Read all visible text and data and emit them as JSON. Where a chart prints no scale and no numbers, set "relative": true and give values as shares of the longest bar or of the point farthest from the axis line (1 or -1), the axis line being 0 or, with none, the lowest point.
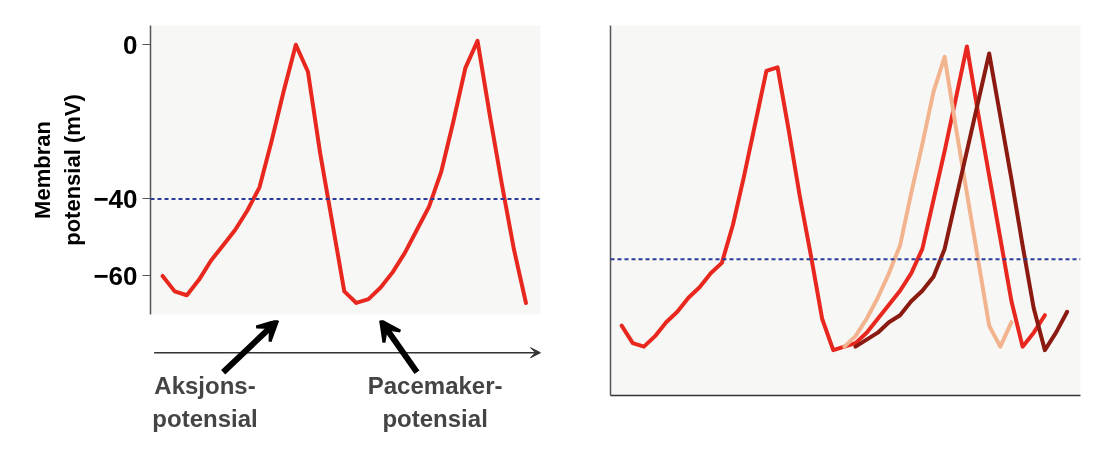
{
  "chart_data": [
    {
      "type": "line",
      "ylabel": "Membran\npotensial (mV)",
      "categories": [
        null,
        null,
        null,
        null,
        null,
        null,
        null,
        null,
        null,
        null,
        null,
        null,
        null,
        null,
        null,
        null,
        null,
        null,
        null,
        null,
        null,
        null,
        null,
        null,
        null,
        null,
        null,
        null,
        null,
        null,
        null
      ],
      "series": [
        {
          "color": "#e8281e",
          "values": [
            -60,
            -64,
            -65,
            -61,
            -56,
            -52,
            -48,
            -43,
            -37,
            -25,
            -12,
            0,
            -7,
            -28,
            -46,
            -64,
            -67,
            -66,
            -63,
            -59,
            -54,
            -48,
            -42,
            -33,
            -20,
            -6,
            1,
            -18,
            -36,
            -53,
            -67
          ]
        }
      ],
      "ylim": [
        -70,
        5
      ],
      "yticks": [
        0,
        -40,
        -60
      ],
      "tick_labels": "y",
      "grid": false,
      "marker": "none",
      "line_style": "solid",
      "ref_lines": [
        {
          "axis": "y",
          "value": -40,
          "color": "#2a3a9a",
          "line_style": "dotted"
        }
      ],
      "annotations": [
        "Aksjons-\npotensial",
        "Pacemaker-\npotensial"
      ]
    },
    {
      "type": "line",
      "relative": true,
      "categories": [
        null,
        null,
        null,
        null,
        null,
        null,
        null,
        null,
        null,
        null,
        null,
        null,
        null,
        null,
        null,
        null,
        null,
        null,
        null,
        null,
        null,
        null,
        null,
        null,
        null,
        null,
        null,
        null,
        null,
        null,
        null,
        null,
        null,
        null,
        null,
        null,
        null,
        null,
        null,
        null,
        null
      ],
      "series": [
        {
          "color": "#e8281e",
          "values": [
            0.2,
            0.15,
            0.14,
            0.17,
            0.21,
            0.24,
            0.28,
            0.31,
            0.35,
            0.38,
            0.49,
            0.63,
            0.78,
            0.93,
            0.94,
            0.76,
            0.57,
            0.4,
            0.22,
            0.13,
            0.14,
            0.15,
            0.18,
            0.22,
            0.26,
            0.3,
            0.35,
            0.42,
            0.56,
            0.7,
            0.85,
            1.0,
            0.81,
            0.63,
            0.45,
            0.27,
            0.14,
            0.18,
            0.23,
            null,
            null
          ]
        },
        {
          "color": "#f2b48e",
          "values": [
            null,
            null,
            null,
            null,
            null,
            null,
            null,
            null,
            null,
            null,
            null,
            null,
            null,
            null,
            null,
            null,
            null,
            null,
            null,
            null,
            0.14,
            0.17,
            0.22,
            0.28,
            0.35,
            0.43,
            0.58,
            0.72,
            0.87,
            0.97,
            0.77,
            0.58,
            0.39,
            0.2,
            0.14,
            0.21,
            null,
            null,
            null,
            null,
            null
          ]
        },
        {
          "color": "#8b1a10",
          "values": [
            null,
            null,
            null,
            null,
            null,
            null,
            null,
            null,
            null,
            null,
            null,
            null,
            null,
            null,
            null,
            null,
            null,
            null,
            null,
            null,
            null,
            0.14,
            0.16,
            0.18,
            0.21,
            0.23,
            0.27,
            0.3,
            0.34,
            0.42,
            0.56,
            0.7,
            0.84,
            0.98,
            0.8,
            0.62,
            0.43,
            0.25,
            0.13,
            0.18,
            0.24
          ]
        }
      ],
      "tick_labels": false,
      "grid": false,
      "marker": "none",
      "line_style": "solid",
      "ref_lines": [
        {
          "axis": "y",
          "value": 0.39,
          "color": "#2a3a9a",
          "line_style": "dotted"
        }
      ]
    }
  ]
}
